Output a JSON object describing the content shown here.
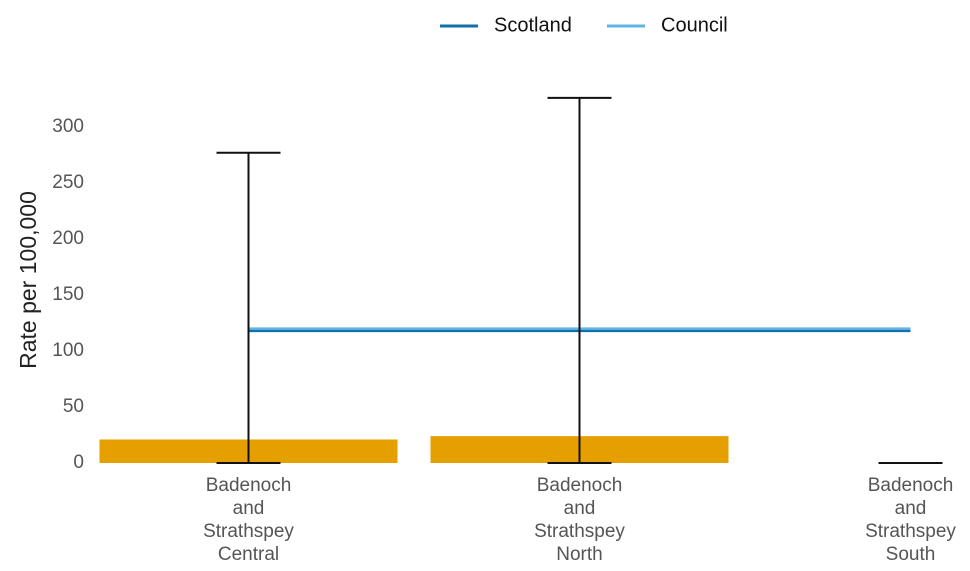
{
  "chart_data": {
    "type": "bar",
    "y_label": "Rate per 100,000",
    "categories": [
      "Badenoch and Strathspey Central",
      "Badenoch and Strathspey North",
      "Badenoch and Strathspey South"
    ],
    "values": [
      21,
      24,
      0
    ],
    "color": "#e69f00",
    "error_lower": [
      0,
      0,
      0
    ],
    "error_upper": [
      277,
      326,
      0
    ],
    "lines": [
      {
        "name": "Scotland",
        "color": "#1170aa",
        "values": [
          118,
          118,
          118
        ]
      },
      {
        "name": "Council",
        "color": "#5fb4e6",
        "values": [
          120,
          120,
          120
        ]
      }
    ],
    "ylim": [
      0,
      330
    ],
    "yticks": [
      0,
      50,
      100,
      150,
      200,
      250,
      300
    ],
    "legend": "top"
  }
}
